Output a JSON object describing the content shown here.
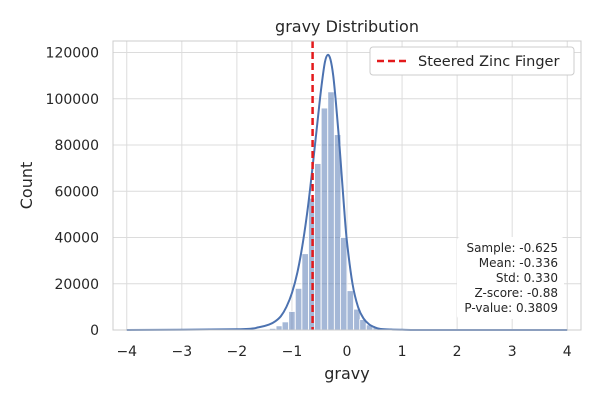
{
  "chart_data": {
    "type": "bar",
    "title": "gravy Distribution",
    "xlabel": "gravy",
    "ylabel": "Count",
    "xlim": [
      -4.25,
      4.25
    ],
    "ylim": [
      0,
      125000
    ],
    "x_ticks": [
      -4,
      -3,
      -2,
      -1,
      0,
      1,
      2,
      3,
      4
    ],
    "y_ticks": [
      0,
      20000,
      40000,
      60000,
      80000,
      100000,
      120000
    ],
    "grid": true,
    "bin_width": 0.1176,
    "histogram": {
      "bin_centers": [
        -1.35,
        -1.23,
        -1.12,
        -1.0,
        -0.88,
        -0.76,
        -0.64,
        -0.53,
        -0.41,
        -0.29,
        -0.17,
        -0.06,
        0.06,
        0.18,
        0.29,
        0.41,
        0.53,
        0.65
      ],
      "counts": [
        700,
        1800,
        3500,
        8000,
        18000,
        33000,
        57000,
        72000,
        96000,
        103000,
        84500,
        40000,
        17000,
        9000,
        4500,
        2200,
        1000,
        400
      ],
      "color": "#4c72b0"
    },
    "kde": {
      "color": "#4c72b0",
      "x": [
        -4.0,
        -2.0,
        -1.6,
        -1.4,
        -1.3,
        -1.2,
        -1.1,
        -1.0,
        -0.9,
        -0.8,
        -0.7,
        -0.6,
        -0.5,
        -0.45,
        -0.4,
        -0.35,
        -0.3,
        -0.25,
        -0.2,
        -0.15,
        -0.1,
        -0.05,
        0.0,
        0.1,
        0.2,
        0.3,
        0.4,
        0.5,
        0.6,
        0.8,
        1.0,
        1.5,
        4.0
      ],
      "y": [
        0,
        300,
        1200,
        2500,
        3800,
        6000,
        10000,
        16000,
        25000,
        38000,
        55000,
        76000,
        98000,
        108000,
        116000,
        119000,
        117000,
        110000,
        98000,
        84000,
        68000,
        52000,
        38000,
        20000,
        10000,
        5000,
        2500,
        1200,
        500,
        200,
        100,
        0,
        0
      ]
    },
    "marker": {
      "label": "Steered Zinc Finger",
      "x": -0.625,
      "color": "#e31a1c"
    },
    "legend": {
      "location": "top-right",
      "entries": [
        "Steered Zinc Finger"
      ]
    },
    "stats_box": {
      "location": "bottom-right",
      "lines": [
        "Sample: -0.625",
        "Mean: -0.336",
        "Std: 0.330",
        "Z-score: -0.88",
        "P-value: 0.3809"
      ]
    }
  }
}
